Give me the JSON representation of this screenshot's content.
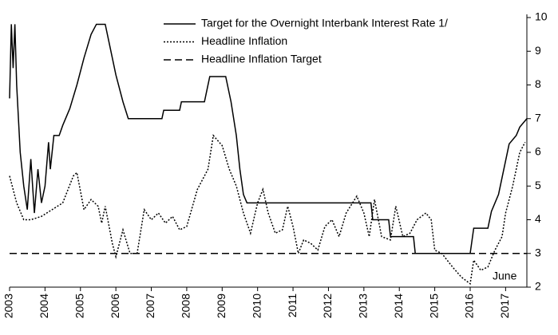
{
  "chart_data": {
    "type": "line",
    "annotation": "June",
    "xlim": [
      2003,
      2017.6
    ],
    "xticks": [
      2003,
      2004,
      2005,
      2006,
      2007,
      2008,
      2009,
      2010,
      2011,
      2012,
      2013,
      2014,
      2015,
      2016,
      2017
    ],
    "ylim": [
      2,
      10
    ],
    "yticks": [
      2,
      3,
      4,
      5,
      6,
      7,
      8,
      9,
      10
    ],
    "series": [
      {
        "name": "Target for the Overnight Interbank Interest Rate 1/",
        "color": "#000000",
        "dash": "none",
        "x": [
          2003.0,
          2003.05,
          2003.1,
          2003.15,
          2003.2,
          2003.3,
          2003.4,
          2003.5,
          2003.6,
          2003.7,
          2003.8,
          2003.9,
          2004.0,
          2004.1,
          2004.15,
          2004.25,
          2004.4,
          2004.5,
          2004.7,
          2004.9,
          2005.1,
          2005.3,
          2005.45,
          2005.7,
          2005.8,
          2006.0,
          2006.2,
          2006.35,
          2007.3,
          2007.35,
          2007.8,
          2007.85,
          2008.5,
          2008.55,
          2008.65,
          2009.1,
          2009.25,
          2009.4,
          2009.5,
          2009.6,
          2009.7,
          2013.2,
          2013.25,
          2013.7,
          2013.75,
          2014.4,
          2014.45,
          2016.0,
          2016.1,
          2016.5,
          2016.6,
          2016.8,
          2016.9,
          2017.0,
          2017.1,
          2017.3,
          2017.4,
          2017.6
        ],
        "values": [
          7.6,
          9.8,
          8.5,
          9.8,
          8.0,
          6.0,
          5.0,
          4.3,
          5.8,
          4.2,
          5.5,
          4.5,
          5.0,
          6.3,
          5.5,
          6.5,
          6.5,
          6.8,
          7.3,
          8.0,
          8.8,
          9.5,
          9.8,
          9.8,
          9.3,
          8.3,
          7.5,
          7.0,
          7.0,
          7.25,
          7.25,
          7.5,
          7.5,
          7.75,
          8.25,
          8.25,
          7.5,
          6.5,
          5.5,
          4.75,
          4.5,
          4.5,
          4.0,
          4.0,
          3.5,
          3.5,
          3.0,
          3.0,
          3.75,
          3.75,
          4.25,
          4.75,
          5.25,
          5.75,
          6.25,
          6.5,
          6.75,
          7.0
        ]
      },
      {
        "name": "Headline Inflation",
        "color": "#000000",
        "dash": "2 2",
        "x": [
          2003.0,
          2003.2,
          2003.4,
          2003.6,
          2003.9,
          2004.2,
          2004.5,
          2004.8,
          2004.9,
          2005.1,
          2005.3,
          2005.5,
          2005.6,
          2005.7,
          2005.9,
          2006.0,
          2006.2,
          2006.4,
          2006.6,
          2006.8,
          2007.0,
          2007.2,
          2007.4,
          2007.6,
          2007.8,
          2008.0,
          2008.3,
          2008.6,
          2008.75,
          2009.0,
          2009.2,
          2009.4,
          2009.6,
          2009.8,
          2010.0,
          2010.15,
          2010.3,
          2010.5,
          2010.7,
          2010.85,
          2011.0,
          2011.15,
          2011.3,
          2011.5,
          2011.7,
          2011.9,
          2012.1,
          2012.3,
          2012.5,
          2012.8,
          2013.0,
          2013.15,
          2013.3,
          2013.5,
          2013.75,
          2013.9,
          2014.1,
          2014.3,
          2014.5,
          2014.75,
          2014.9,
          2015.0,
          2015.2,
          2015.5,
          2015.75,
          2016.0,
          2016.1,
          2016.3,
          2016.5,
          2016.7,
          2016.9,
          2017.0,
          2017.2,
          2017.4,
          2017.55
        ],
        "values": [
          5.3,
          4.5,
          4.0,
          4.0,
          4.1,
          4.3,
          4.5,
          5.3,
          5.4,
          4.3,
          4.6,
          4.4,
          3.9,
          4.4,
          3.3,
          2.9,
          3.7,
          3.0,
          3.0,
          4.3,
          4.0,
          4.2,
          3.9,
          4.1,
          3.7,
          3.8,
          4.9,
          5.5,
          6.5,
          6.2,
          5.5,
          5.0,
          4.2,
          3.6,
          4.5,
          4.9,
          4.2,
          3.6,
          3.7,
          4.4,
          3.8,
          3.0,
          3.4,
          3.3,
          3.1,
          3.8,
          4.0,
          3.5,
          4.2,
          4.7,
          4.2,
          3.5,
          4.6,
          3.5,
          3.4,
          4.4,
          3.5,
          3.6,
          4.0,
          4.2,
          4.0,
          3.1,
          3.0,
          2.6,
          2.3,
          2.1,
          2.8,
          2.5,
          2.6,
          3.1,
          3.5,
          4.2,
          5.0,
          6.0,
          6.3
        ]
      },
      {
        "name": "Headline Inflation Target",
        "color": "#000000",
        "dash": "9 5",
        "x": [
          2003,
          2017.6
        ],
        "values": [
          3,
          3
        ]
      }
    ]
  }
}
